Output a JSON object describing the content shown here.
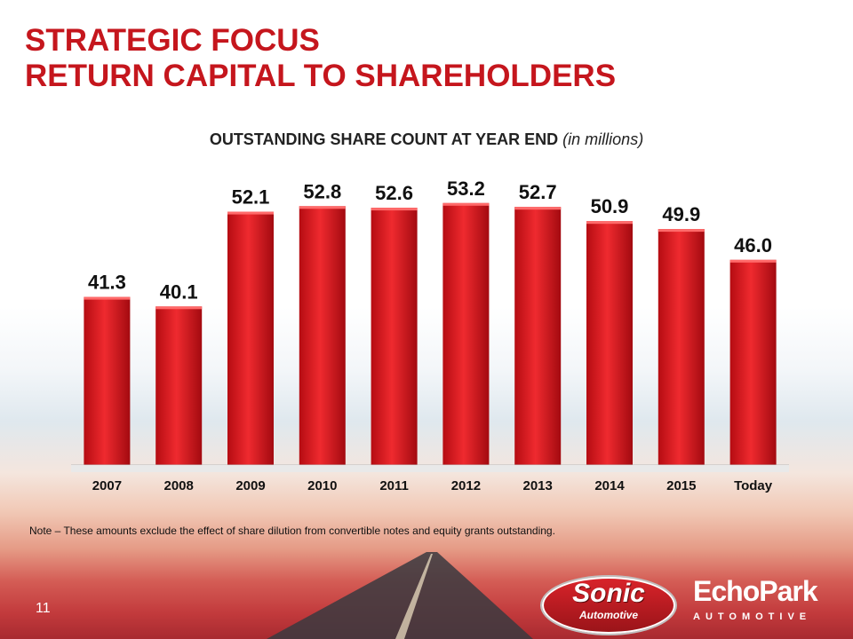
{
  "slide": {
    "title_line1": "STRATEGIC FOCUS",
    "title_line2": "RETURN CAPITAL TO SHAREHOLDERS",
    "page_number": "11",
    "note": "Note – These amounts exclude the effect of share dilution from convertible notes and equity grants outstanding.",
    "accent_color": "#c5161d",
    "bar_color": "#e3161d"
  },
  "logos": {
    "sonic_word": "Sonic",
    "sonic_sub": "Automotive",
    "echo_word": "EchoPark",
    "echo_sub": "AUTOMOTIVE"
  },
  "chart_data": {
    "type": "bar",
    "title": "OUTSTANDING SHARE COUNT AT YEAR END",
    "title_suffix": "(in millions)",
    "categories": [
      "2007",
      "2008",
      "2009",
      "2010",
      "2011",
      "2012",
      "2013",
      "2014",
      "2015",
      "Today"
    ],
    "values": [
      41.3,
      40.1,
      52.1,
      52.8,
      52.6,
      53.2,
      52.7,
      50.9,
      49.9,
      46.0
    ],
    "value_labels": [
      "41.3",
      "40.1",
      "52.1",
      "52.8",
      "52.6",
      "53.2",
      "52.7",
      "50.9",
      "49.9",
      "46.0"
    ],
    "xlabel": "",
    "ylabel": "",
    "ylim": [
      20,
      55
    ],
    "grid": false,
    "legend": "none"
  }
}
